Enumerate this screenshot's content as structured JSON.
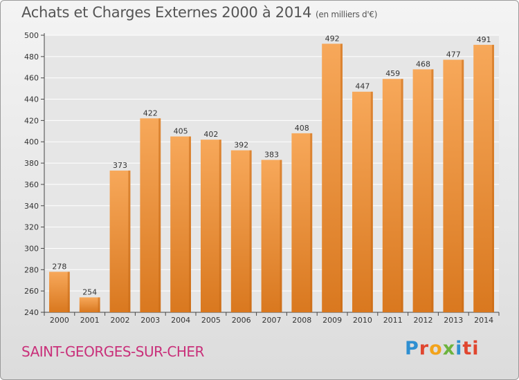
{
  "header": {
    "title": "Achats et Charges Externes 2000 à 2014",
    "subtitle": "(en milliers d'€)"
  },
  "footer": {
    "town": "SAINT-GEORGES-SUR-CHER",
    "logo_letters": [
      "P",
      "r",
      "o",
      "x",
      "i",
      "ti"
    ]
  },
  "colors": {
    "bar_top": "#f7a85a",
    "bar_bottom": "#d9781f",
    "bar_shade": "#c76a16",
    "town": "#c9307a"
  },
  "chart_data": {
    "type": "bar",
    "title": "Achats et Charges Externes 2000 à 2014",
    "subtitle": "(en milliers d'€)",
    "categories": [
      "2000",
      "2001",
      "2002",
      "2003",
      "2004",
      "2005",
      "2006",
      "2007",
      "2008",
      "2009",
      "2010",
      "2011",
      "2012",
      "2013",
      "2014"
    ],
    "values": [
      278,
      254,
      373,
      422,
      405,
      402,
      392,
      383,
      408,
      492,
      447,
      459,
      468,
      477,
      491
    ],
    "ylim": [
      240,
      500
    ],
    "yticks": [
      240,
      260,
      280,
      300,
      320,
      340,
      360,
      380,
      400,
      420,
      440,
      460,
      480,
      500
    ],
    "grid": true,
    "legend": "none"
  }
}
